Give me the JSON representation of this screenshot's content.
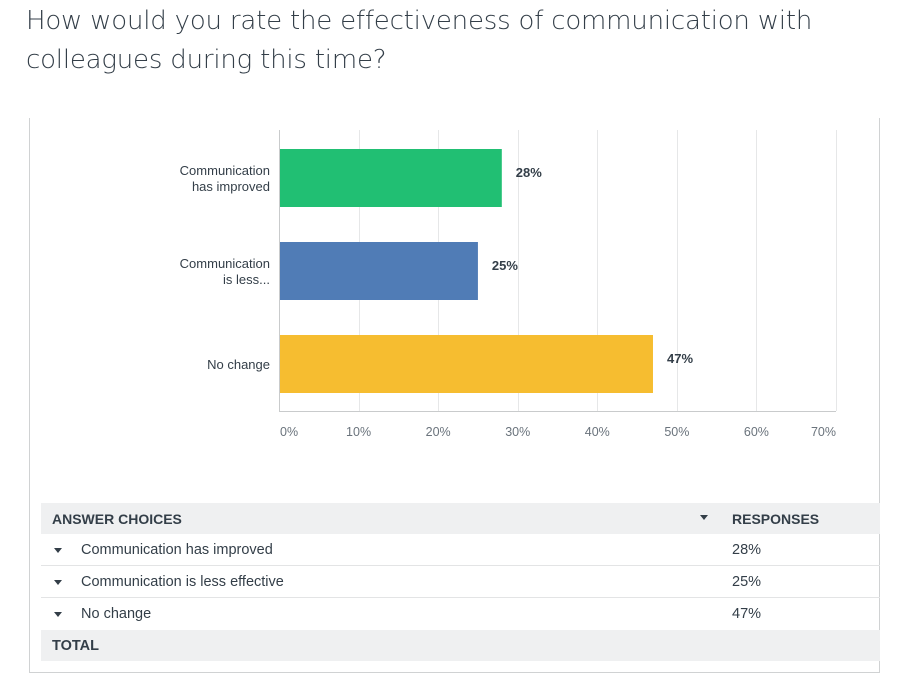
{
  "question": {
    "line1": "How would you rate the effectiveness of communication with",
    "line2": "colleagues during this time?"
  },
  "chart_data": {
    "type": "bar",
    "orientation": "horizontal",
    "categories": [
      [
        "Communication",
        "has improved"
      ],
      [
        "Communication",
        "is less..."
      ],
      [
        "No change"
      ]
    ],
    "values": [
      28,
      25,
      47
    ],
    "value_labels": [
      "28%",
      "25%",
      "47%"
    ],
    "colors": [
      "#21bf73",
      "#507cb6",
      "#f6bd30"
    ],
    "x_ticks": [
      0,
      10,
      20,
      30,
      40,
      50,
      60,
      70
    ],
    "x_tick_labels": [
      "0%",
      "10%",
      "20%",
      "30%",
      "40%",
      "50%",
      "60%",
      "70%"
    ],
    "xlim": [
      0,
      70
    ],
    "grid": true,
    "title": "",
    "xlabel": "",
    "ylabel": ""
  },
  "table": {
    "header_choice": "ANSWER CHOICES",
    "header_responses": "RESPONSES",
    "rows": [
      {
        "choice": "Communication has improved",
        "response": "28%"
      },
      {
        "choice": "Communication is less effective",
        "response": "25%"
      },
      {
        "choice": "No change",
        "response": "47%"
      }
    ],
    "total_label": "TOTAL"
  }
}
